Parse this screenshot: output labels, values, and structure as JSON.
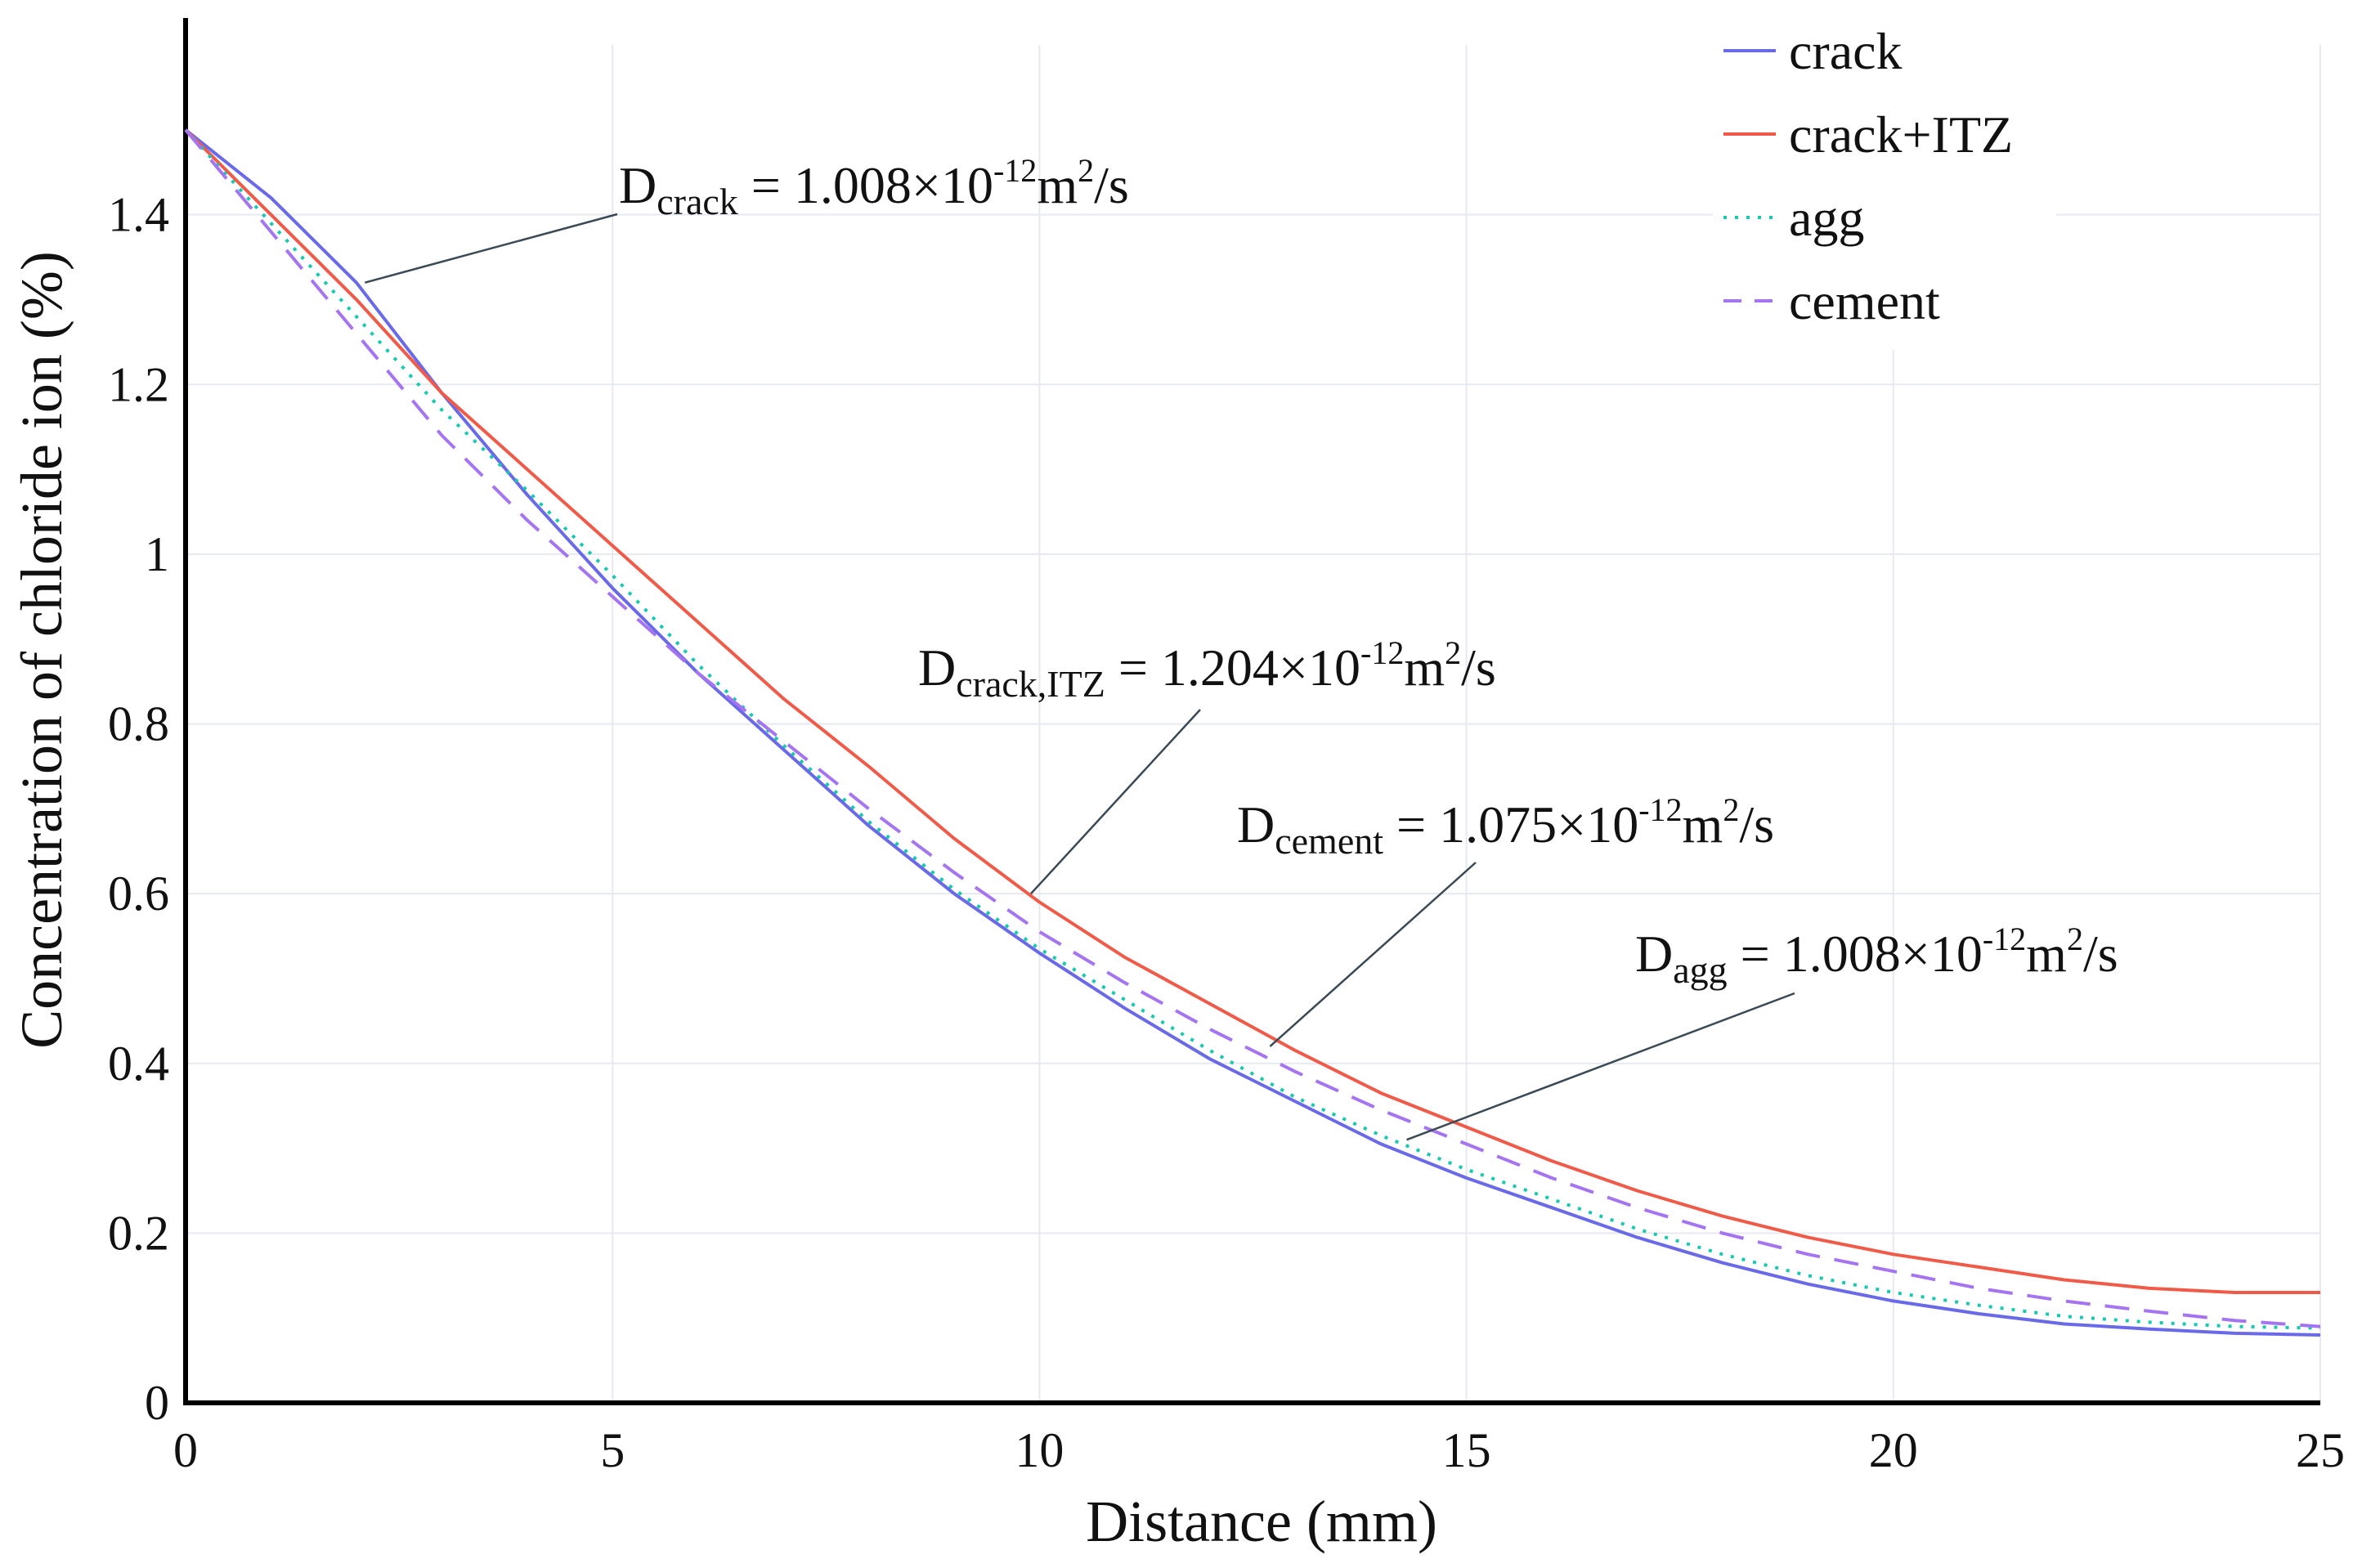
{
  "chart_data": {
    "type": "line",
    "title": "",
    "xlabel": "Distance (mm)",
    "ylabel": "Concentration of chloride ion (%)",
    "xlim": [
      0,
      25
    ],
    "ylim": [
      0,
      1.6
    ],
    "xticks": [
      0,
      5,
      10,
      15,
      20,
      25
    ],
    "xtick_labels": [
      "0",
      "5",
      "10",
      "15",
      "20",
      "25"
    ],
    "yticks": [
      0,
      0.2,
      0.4,
      0.6,
      0.8,
      1.0,
      1.2,
      1.4
    ],
    "ytick_labels": [
      "0",
      "0.2",
      "0.4",
      "0.6",
      "0.8",
      "1",
      "1.2",
      "1.4"
    ],
    "grid": true,
    "legend_position": "top-right",
    "x": [
      0,
      1,
      2,
      3,
      4,
      5,
      6,
      7,
      8,
      9,
      10,
      11,
      12,
      13,
      14,
      15,
      16,
      17,
      18,
      19,
      20,
      21,
      22,
      23,
      24,
      25
    ],
    "series": [
      {
        "name": "crack",
        "color": "#6a6ae8",
        "style": "solid",
        "values": [
          1.5,
          1.42,
          1.32,
          1.19,
          1.07,
          0.96,
          0.86,
          0.77,
          0.68,
          0.6,
          0.53,
          0.465,
          0.405,
          0.355,
          0.305,
          0.265,
          0.23,
          0.195,
          0.165,
          0.14,
          0.12,
          0.105,
          0.093,
          0.087,
          0.082,
          0.08
        ]
      },
      {
        "name": "crack+ITZ",
        "color": "#f05a48",
        "style": "solid",
        "values": [
          1.5,
          1.4,
          1.3,
          1.19,
          1.1,
          1.01,
          0.92,
          0.83,
          0.75,
          0.665,
          0.59,
          0.525,
          0.47,
          0.415,
          0.365,
          0.325,
          0.285,
          0.25,
          0.22,
          0.195,
          0.175,
          0.16,
          0.145,
          0.135,
          0.13,
          0.13
        ]
      },
      {
        "name": "agg",
        "color": "#18c8b0",
        "style": "dotted",
        "values": [
          1.5,
          1.39,
          1.28,
          1.17,
          1.075,
          0.975,
          0.87,
          0.775,
          0.685,
          0.605,
          0.535,
          0.475,
          0.415,
          0.36,
          0.315,
          0.275,
          0.24,
          0.205,
          0.175,
          0.15,
          0.13,
          0.115,
          0.102,
          0.095,
          0.09,
          0.088
        ]
      },
      {
        "name": "cement",
        "color": "#a574f0",
        "style": "dashed",
        "values": [
          1.5,
          1.38,
          1.26,
          1.14,
          1.04,
          0.95,
          0.86,
          0.78,
          0.7,
          0.625,
          0.555,
          0.495,
          0.44,
          0.39,
          0.345,
          0.305,
          0.265,
          0.23,
          0.2,
          0.175,
          0.155,
          0.135,
          0.12,
          0.108,
          0.097,
          0.09
        ]
      }
    ],
    "annotations": [
      {
        "main": "D",
        "sub": "crack",
        "text": " = 1.008×10",
        "exp": "-12",
        "unit": "m",
        "unit_exp": "2",
        "tail": "/s",
        "target_x": 2.1,
        "target_y": 1.32
      },
      {
        "main": "D",
        "sub": "crack,ITZ",
        "text": " = 1.204×10",
        "exp": "-12",
        "unit": "m",
        "unit_exp": "2",
        "tail": "/s",
        "target_x": 9.9,
        "target_y": 0.6
      },
      {
        "main": "D",
        "sub": "cement",
        "text": " = 1.075×10",
        "exp": "-12",
        "unit": "m",
        "unit_exp": "2",
        "tail": "/s",
        "target_x": 12.7,
        "target_y": 0.42
      },
      {
        "main": "D",
        "sub": "agg",
        "text": " = 1.008×10",
        "exp": "-12",
        "unit": "m",
        "unit_exp": "2",
        "tail": "/s",
        "target_x": 14.3,
        "target_y": 0.31
      }
    ]
  }
}
